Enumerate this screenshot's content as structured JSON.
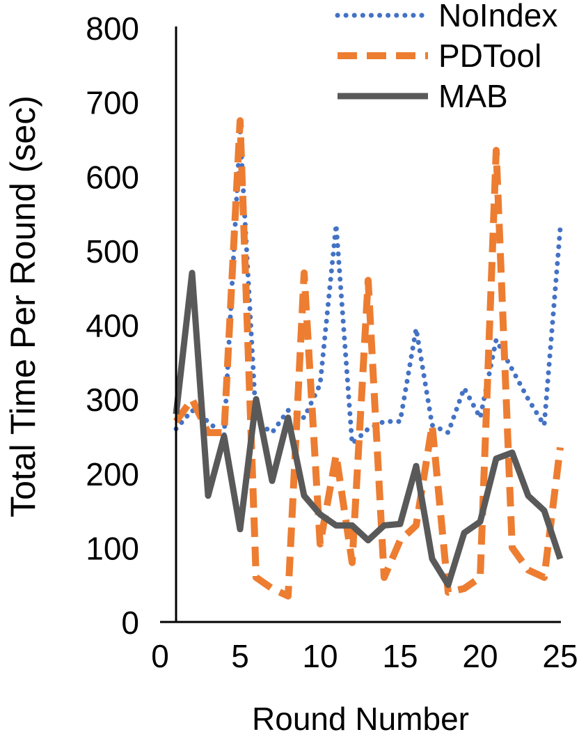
{
  "chart_data": {
    "type": "line",
    "title": "",
    "xlabel": "Round Number",
    "ylabel": "Total Time Per Round (sec)",
    "xlim": [
      0,
      25
    ],
    "ylim": [
      0,
      800
    ],
    "xticks": [
      "0",
      "5",
      "10",
      "15",
      "20",
      "25"
    ],
    "yticks": [
      "0",
      "100",
      "200",
      "300",
      "400",
      "500",
      "600",
      "700",
      "800"
    ],
    "grid": false,
    "legend_position": "top-right",
    "x": [
      1,
      2,
      3,
      4,
      5,
      6,
      7,
      8,
      9,
      10,
      11,
      12,
      13,
      14,
      15,
      16,
      17,
      18,
      19,
      20,
      21,
      22,
      23,
      24,
      25
    ],
    "series": [
      {
        "name": "NoIndex",
        "color": "#4472C4",
        "style": "dotted",
        "values": [
          260,
          285,
          270,
          250,
          660,
          270,
          255,
          285,
          275,
          320,
          535,
          240,
          260,
          270,
          270,
          395,
          265,
          255,
          315,
          275,
          380,
          340,
          300,
          265,
          530
        ]
      },
      {
        "name": "PDTool",
        "color": "#ED7D31",
        "style": "dashed",
        "values": [
          270,
          300,
          255,
          255,
          675,
          60,
          45,
          35,
          470,
          105,
          225,
          80,
          460,
          60,
          110,
          130,
          265,
          40,
          45,
          60,
          635,
          100,
          70,
          60,
          235
        ]
      },
      {
        "name": "MAB",
        "color": "#595959",
        "style": "solid",
        "values": [
          280,
          470,
          170,
          250,
          125,
          300,
          190,
          275,
          170,
          145,
          130,
          130,
          110,
          130,
          132,
          210,
          85,
          50,
          120,
          135,
          220,
          228,
          170,
          150,
          85
        ]
      }
    ]
  }
}
